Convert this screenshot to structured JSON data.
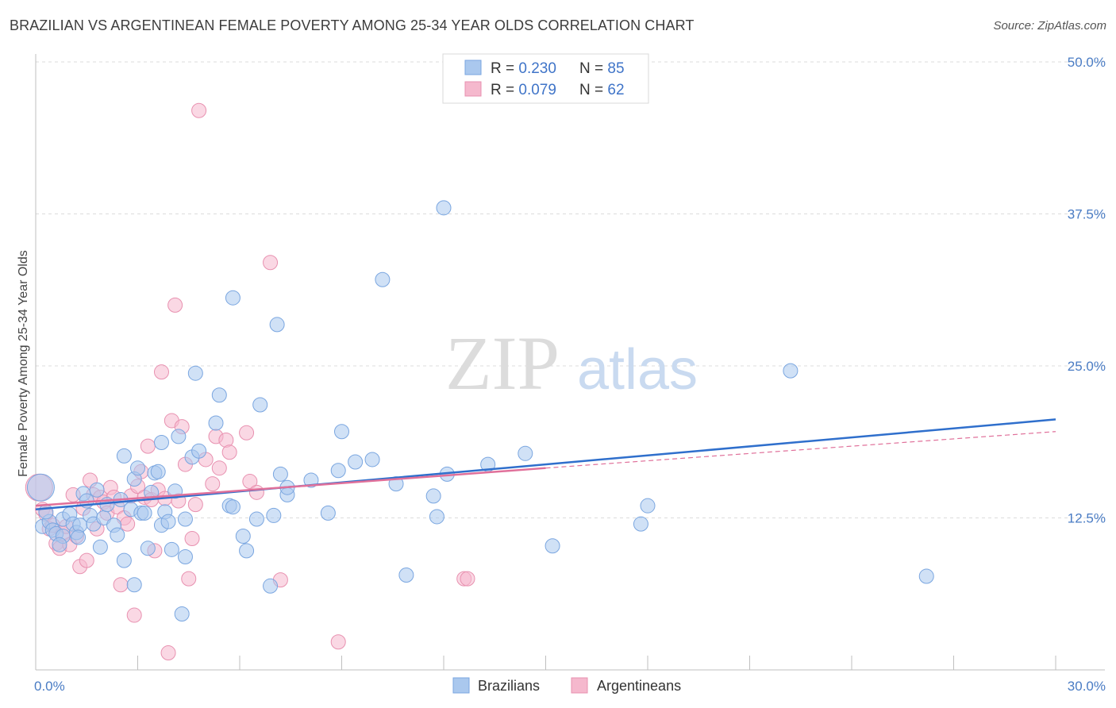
{
  "title": "BRAZILIAN VS ARGENTINEAN FEMALE POVERTY AMONG 25-34 YEAR OLDS CORRELATION CHART",
  "source": "Source: ZipAtlas.com",
  "watermark": {
    "zip": "ZIP",
    "atlas": "atlas"
  },
  "legend_box": {
    "rows": [
      {
        "r_label": "R = ",
        "r_value": "0.230",
        "n_label": "N = ",
        "n_value": "85"
      },
      {
        "r_label": "R = ",
        "r_value": "0.079",
        "n_label": "N = ",
        "n_value": "62"
      }
    ]
  },
  "chart_data": {
    "type": "scatter",
    "title": "BRAZILIAN VS ARGENTINEAN FEMALE POVERTY AMONG 25-34 YEAR OLDS CORRELATION CHART",
    "xlabel": "",
    "ylabel": "Female Poverty Among 25-34 Year Olds",
    "xlim": [
      0,
      30
    ],
    "ylim": [
      0,
      50
    ],
    "x_tick_labels": [
      "0.0%",
      "30.0%"
    ],
    "y_ticks": [
      12.5,
      25.0,
      37.5,
      50.0
    ],
    "y_tick_labels": [
      "12.5%",
      "25.0%",
      "37.5%",
      "50.0%"
    ],
    "grid": true,
    "legend_position": "top-center",
    "colors": {
      "brazilians": "#aac8ee",
      "brazilians_line": "#2f6fcc",
      "argentineans": "#f5b8cd",
      "argentineans_line": "#e0709a"
    },
    "series": [
      {
        "name": "Brazilians",
        "r": 0.23,
        "n": 85,
        "trend": {
          "x": [
            0,
            30
          ],
          "y": [
            13.2,
            20.6
          ]
        },
        "points": [
          [
            0.2,
            11.8
          ],
          [
            0.4,
            12.2
          ],
          [
            0.5,
            11.5
          ],
          [
            0.6,
            11.2
          ],
          [
            0.8,
            12.4
          ],
          [
            0.8,
            11.0
          ],
          [
            1.0,
            12.8
          ],
          [
            1.1,
            12.0
          ],
          [
            1.2,
            11.3
          ],
          [
            1.3,
            11.9
          ],
          [
            1.4,
            14.5
          ],
          [
            1.5,
            13.9
          ],
          [
            1.6,
            12.7
          ],
          [
            1.7,
            12.0
          ],
          [
            1.8,
            14.8
          ],
          [
            1.9,
            10.1
          ],
          [
            2.0,
            12.5
          ],
          [
            2.1,
            13.6
          ],
          [
            2.3,
            11.9
          ],
          [
            2.4,
            11.1
          ],
          [
            2.5,
            14.0
          ],
          [
            2.6,
            9.0
          ],
          [
            2.6,
            17.6
          ],
          [
            2.8,
            13.2
          ],
          [
            2.9,
            7.0
          ],
          [
            2.9,
            15.7
          ],
          [
            3.0,
            16.6
          ],
          [
            3.1,
            12.9
          ],
          [
            3.2,
            12.9
          ],
          [
            3.3,
            10.0
          ],
          [
            3.4,
            14.6
          ],
          [
            3.5,
            16.2
          ],
          [
            3.6,
            16.3
          ],
          [
            3.7,
            11.9
          ],
          [
            3.7,
            18.7
          ],
          [
            3.8,
            13.0
          ],
          [
            3.9,
            12.2
          ],
          [
            4.0,
            9.9
          ],
          [
            4.1,
            14.7
          ],
          [
            4.2,
            19.2
          ],
          [
            4.3,
            4.6
          ],
          [
            4.4,
            12.4
          ],
          [
            4.4,
            9.3
          ],
          [
            4.6,
            17.5
          ],
          [
            4.7,
            24.4
          ],
          [
            4.8,
            18.0
          ],
          [
            5.3,
            20.3
          ],
          [
            5.4,
            22.6
          ],
          [
            5.7,
            13.5
          ],
          [
            5.8,
            13.4
          ],
          [
            5.8,
            30.6
          ],
          [
            6.1,
            11.0
          ],
          [
            6.2,
            9.8
          ],
          [
            6.5,
            12.4
          ],
          [
            6.6,
            21.8
          ],
          [
            6.9,
            6.9
          ],
          [
            7.0,
            12.7
          ],
          [
            7.1,
            28.4
          ],
          [
            7.2,
            16.1
          ],
          [
            7.4,
            14.4
          ],
          [
            7.4,
            15.0
          ],
          [
            8.1,
            15.6
          ],
          [
            8.6,
            12.9
          ],
          [
            8.9,
            16.4
          ],
          [
            9.0,
            19.6
          ],
          [
            9.4,
            17.1
          ],
          [
            9.9,
            17.3
          ],
          [
            10.2,
            32.1
          ],
          [
            10.6,
            15.3
          ],
          [
            10.9,
            7.8
          ],
          [
            11.7,
            14.3
          ],
          [
            11.8,
            12.6
          ],
          [
            12.0,
            38.0
          ],
          [
            12.1,
            16.1
          ],
          [
            13.3,
            16.9
          ],
          [
            14.4,
            17.8
          ],
          [
            15.2,
            10.2
          ],
          [
            17.8,
            12.0
          ],
          [
            18.0,
            13.5
          ],
          [
            22.2,
            24.6
          ],
          [
            26.2,
            7.7
          ],
          [
            0.15,
            15.0
          ],
          [
            0.3,
            13.0
          ],
          [
            0.7,
            10.3
          ],
          [
            1.25,
            10.9
          ]
        ]
      },
      {
        "name": "Argentineans",
        "r": 0.079,
        "n": 62,
        "trend": {
          "x": [
            0,
            15
          ],
          "y": [
            13.5,
            16.6
          ]
        },
        "trend_extension": {
          "x": [
            15,
            30
          ],
          "y": [
            16.6,
            19.6
          ]
        },
        "points": [
          [
            0.1,
            15.0
          ],
          [
            0.2,
            13.2
          ],
          [
            0.3,
            12.8
          ],
          [
            0.4,
            11.6
          ],
          [
            0.5,
            11.9
          ],
          [
            0.6,
            10.4
          ],
          [
            0.7,
            10.0
          ],
          [
            0.8,
            11.2
          ],
          [
            0.9,
            11.8
          ],
          [
            1.0,
            10.3
          ],
          [
            1.1,
            14.4
          ],
          [
            1.2,
            11.0
          ],
          [
            1.3,
            8.5
          ],
          [
            1.4,
            13.3
          ],
          [
            1.5,
            9.0
          ],
          [
            1.6,
            15.6
          ],
          [
            1.7,
            14.4
          ],
          [
            1.8,
            11.6
          ],
          [
            1.9,
            14.2
          ],
          [
            2.0,
            13.8
          ],
          [
            2.1,
            12.9
          ],
          [
            2.2,
            15.0
          ],
          [
            2.3,
            14.2
          ],
          [
            2.4,
            13.4
          ],
          [
            2.5,
            7.0
          ],
          [
            2.6,
            12.5
          ],
          [
            2.7,
            12.0
          ],
          [
            2.8,
            14.3
          ],
          [
            2.9,
            4.5
          ],
          [
            3.0,
            15.1
          ],
          [
            3.1,
            16.3
          ],
          [
            3.2,
            14.2
          ],
          [
            3.3,
            18.4
          ],
          [
            3.4,
            14.0
          ],
          [
            3.5,
            9.8
          ],
          [
            3.6,
            14.8
          ],
          [
            3.7,
            24.5
          ],
          [
            3.8,
            14.1
          ],
          [
            3.9,
            1.4
          ],
          [
            4.0,
            20.5
          ],
          [
            4.1,
            30.0
          ],
          [
            4.2,
            13.9
          ],
          [
            4.3,
            20.0
          ],
          [
            4.4,
            16.9
          ],
          [
            4.5,
            7.5
          ],
          [
            4.6,
            10.8
          ],
          [
            4.7,
            13.6
          ],
          [
            4.8,
            46.0
          ],
          [
            5.0,
            17.3
          ],
          [
            5.2,
            15.3
          ],
          [
            5.3,
            19.2
          ],
          [
            5.4,
            16.6
          ],
          [
            5.6,
            18.9
          ],
          [
            5.7,
            17.9
          ],
          [
            6.2,
            19.5
          ],
          [
            6.3,
            15.5
          ],
          [
            6.5,
            14.6
          ],
          [
            6.9,
            33.5
          ],
          [
            7.2,
            7.4
          ],
          [
            8.9,
            2.3
          ],
          [
            12.6,
            7.5
          ],
          [
            12.7,
            7.5
          ]
        ]
      }
    ]
  },
  "bottom_legend": {
    "items": [
      {
        "label": "Brazilians"
      },
      {
        "label": "Argentineans"
      }
    ]
  }
}
